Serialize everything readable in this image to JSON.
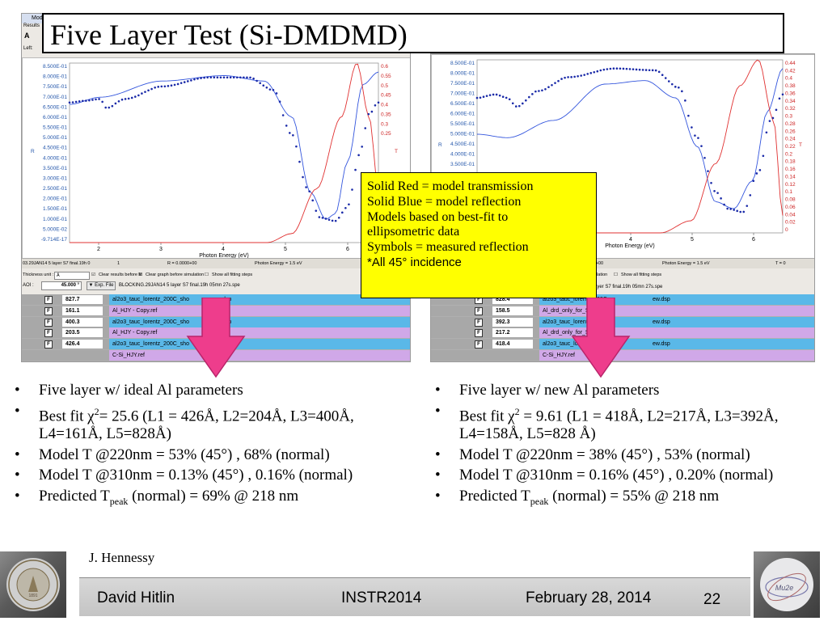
{
  "slide": {
    "title": "Five Layer Test (Si-DMDMD)",
    "page_number": "22"
  },
  "legend_note": {
    "lines": [
      "Solid Red = model transmission",
      "Solid Blue = model reflection",
      "Models based on best-fit to",
      "ellipsometric data",
      "Symbols = measured reflection"
    ],
    "last_line": "*All 45° incidence"
  },
  "left_panel": {
    "window_title": "Mode",
    "menu_label": "Results",
    "left_label": "Left:",
    "status": [
      "03.29JAN14 5 layer S7 final.19h 0",
      "1",
      "R = 0.0000+00",
      "Photon Energy = 1.5 eV"
    ],
    "thickness_label": "Thickness unit :",
    "thickness_unit": "Å",
    "clear_results": "Clear results before fit",
    "clear_graph": "Clear graph before simulation",
    "show_steps": "Show all fitting steps",
    "aoi_label": "AOI :",
    "aoi_value": "45.000 °",
    "exp_file_button": "▼ Exp. File",
    "file_name": "BLOCKING.29JAN14 5 layer S7 final.19h 05mn 27s.spe",
    "layers": [
      {
        "check": "F",
        "thickness": "827.7",
        "model": "al2o3_tauc_lorentz_200C_sho",
        "suffix": "dsp",
        "color": "#5ab8e8"
      },
      {
        "check": "F",
        "thickness": "161.1",
        "model": "Al_HJY - Copy.ref",
        "suffix": "",
        "color": "#d0a8e8"
      },
      {
        "check": "F",
        "thickness": "400.3",
        "model": "al2o3_tauc_lorentz_200C_sho",
        "suffix": "dsp",
        "color": "#5ab8e8"
      },
      {
        "check": "F",
        "thickness": "203.5",
        "model": "Al_HJY - Copy.ref",
        "suffix": "",
        "color": "#d0a8e8"
      },
      {
        "check": "F",
        "thickness": "426.4",
        "model": "al2o3_tauc_lorentz_200C_sho",
        "suffix": "dsp",
        "color": "#5ab8e8"
      },
      {
        "check": "",
        "thickness": "",
        "model": "C-Si_HJY.ref",
        "suffix": "",
        "color": "#d0a8e8"
      }
    ],
    "y_label": "R",
    "x_label": "Photon Energy (eV)",
    "y2_label": "T",
    "y_ticks": [
      "8.500E-01",
      "8.000E-01",
      "7.500E-01",
      "7.000E-01",
      "6.500E-01",
      "6.000E-01",
      "5.500E-01",
      "5.000E-01",
      "4.500E-01",
      "4.000E-01",
      "3.500E-01",
      "3.000E-01",
      "2.500E-01",
      "2.000E-01",
      "1.500E-01",
      "1.000E-01",
      "5.000E-02",
      "-9.714E-17"
    ],
    "y2_ticks": [
      "0.6",
      "0.55",
      "0.5",
      "0.45",
      "0.4",
      "0.35",
      "0.3",
      "0.25"
    ],
    "x_ticks": [
      "2",
      "3",
      "4",
      "5",
      "6"
    ]
  },
  "right_panel": {
    "status": [
      "E+00",
      "Photon Energy = 1.5 eV",
      "T = 0"
    ],
    "simulation_label": "ulation",
    "show_steps": "Show all fitting steps",
    "file_name": "ayer S7 final.19h 05mn 27s.spe",
    "layers": [
      {
        "check": "F",
        "thickness": "828.4",
        "model": "al2o3_tauc_lorentz_200C",
        "suffix": "ew.dsp",
        "color": "#5ab8e8"
      },
      {
        "check": "F",
        "thickness": "158.5",
        "model": "Al_drd_only_for_S5.dsp",
        "suffix": "",
        "color": "#d0a8e8"
      },
      {
        "check": "F",
        "thickness": "392.3",
        "model": "al2o3_tauc_lorentz_200C",
        "suffix": "ew.dsp",
        "color": "#5ab8e8"
      },
      {
        "check": "F",
        "thickness": "217.2",
        "model": "Al_drd_only_for_S5.dsp",
        "suffix": "",
        "color": "#d0a8e8"
      },
      {
        "check": "F",
        "thickness": "418.4",
        "model": "al2o3_tauc_lorentz_200C",
        "suffix": "ew.dsp",
        "color": "#5ab8e8"
      },
      {
        "check": "",
        "thickness": "",
        "model": "C-Si_HJY.ref",
        "suffix": "",
        "color": "#d0a8e8"
      }
    ],
    "y_label": "R",
    "x_label": "Photon Energy (eV)",
    "y2_label": "T",
    "y_ticks": [
      "8.500E-01",
      "8.000E-01",
      "7.500E-01",
      "7.000E-01",
      "6.500E-01",
      "6.000E-01",
      "5.500E-01",
      "5.000E-01",
      "4.500E-01",
      "4.000E-01",
      "3.500E-01",
      "3.000E-01"
    ],
    "y2_ticks": [
      "0.44",
      "0.42",
      "0.4",
      "0.38",
      "0.36",
      "0.34",
      "0.32",
      "0.3",
      "0.28",
      "0.26",
      "0.24",
      "0.22",
      "0.2",
      "0.18",
      "0.16",
      "0.14",
      "0.12",
      "0.1",
      "0.08",
      "0.06",
      "0.04",
      "0.02",
      "0"
    ],
    "x_ticks": [
      "4",
      "5",
      "6"
    ]
  },
  "bullets_left": [
    {
      "text": "Five layer w/ ideal Al parameters"
    },
    {
      "pre": "Best fit χ",
      "sup": "2",
      "post": "= 25.6 (L1 = 426Å, L2=204Å, L3=400Å, L4=161Å, L5=828Å)"
    },
    {
      "text": "Model T @220nm = 53% (45°) , 68% (normal)"
    },
    {
      "text": "Model T @310nm = 0.13% (45°) , 0.16% (normal)"
    },
    {
      "pre": "Predicted T",
      "sub": "peak",
      "post": " (normal) = 69% @ 218 nm"
    }
  ],
  "bullets_right": [
    {
      "text": "Five layer w/ new Al parameters"
    },
    {
      "pre": "Best fit χ",
      "sup": "2",
      "post": " = 9.61 (L1 = 418Å, L2=217Å, L3=392Å, L4=158Å, L5=828 Å)"
    },
    {
      "text": "Model T @220nm = 38% (45°) , 53% (normal)"
    },
    {
      "text": "Model T @310nm = 0.16% (45°) , 0.20% (normal)"
    },
    {
      "pre": "Predicted T",
      "sub": "peak",
      "post": " (normal) = 55% @ 218 nm"
    }
  ],
  "footer": {
    "author_note": "J. Hennessy",
    "presenter": "David Hitlin",
    "conference": "INSTR2014",
    "date": "February 28, 2014",
    "left_logo_text": "CALIFORNIA INSTITUTE OF TECHNOLOGY",
    "left_logo_year": "1891"
  },
  "colors": {
    "model_reflection": "#3355dd",
    "model_transmission": "#e03030",
    "measured_reflection": "#1a2aa8",
    "arrow": "#ee3d8c",
    "legend_bg": "#ffff00"
  }
}
